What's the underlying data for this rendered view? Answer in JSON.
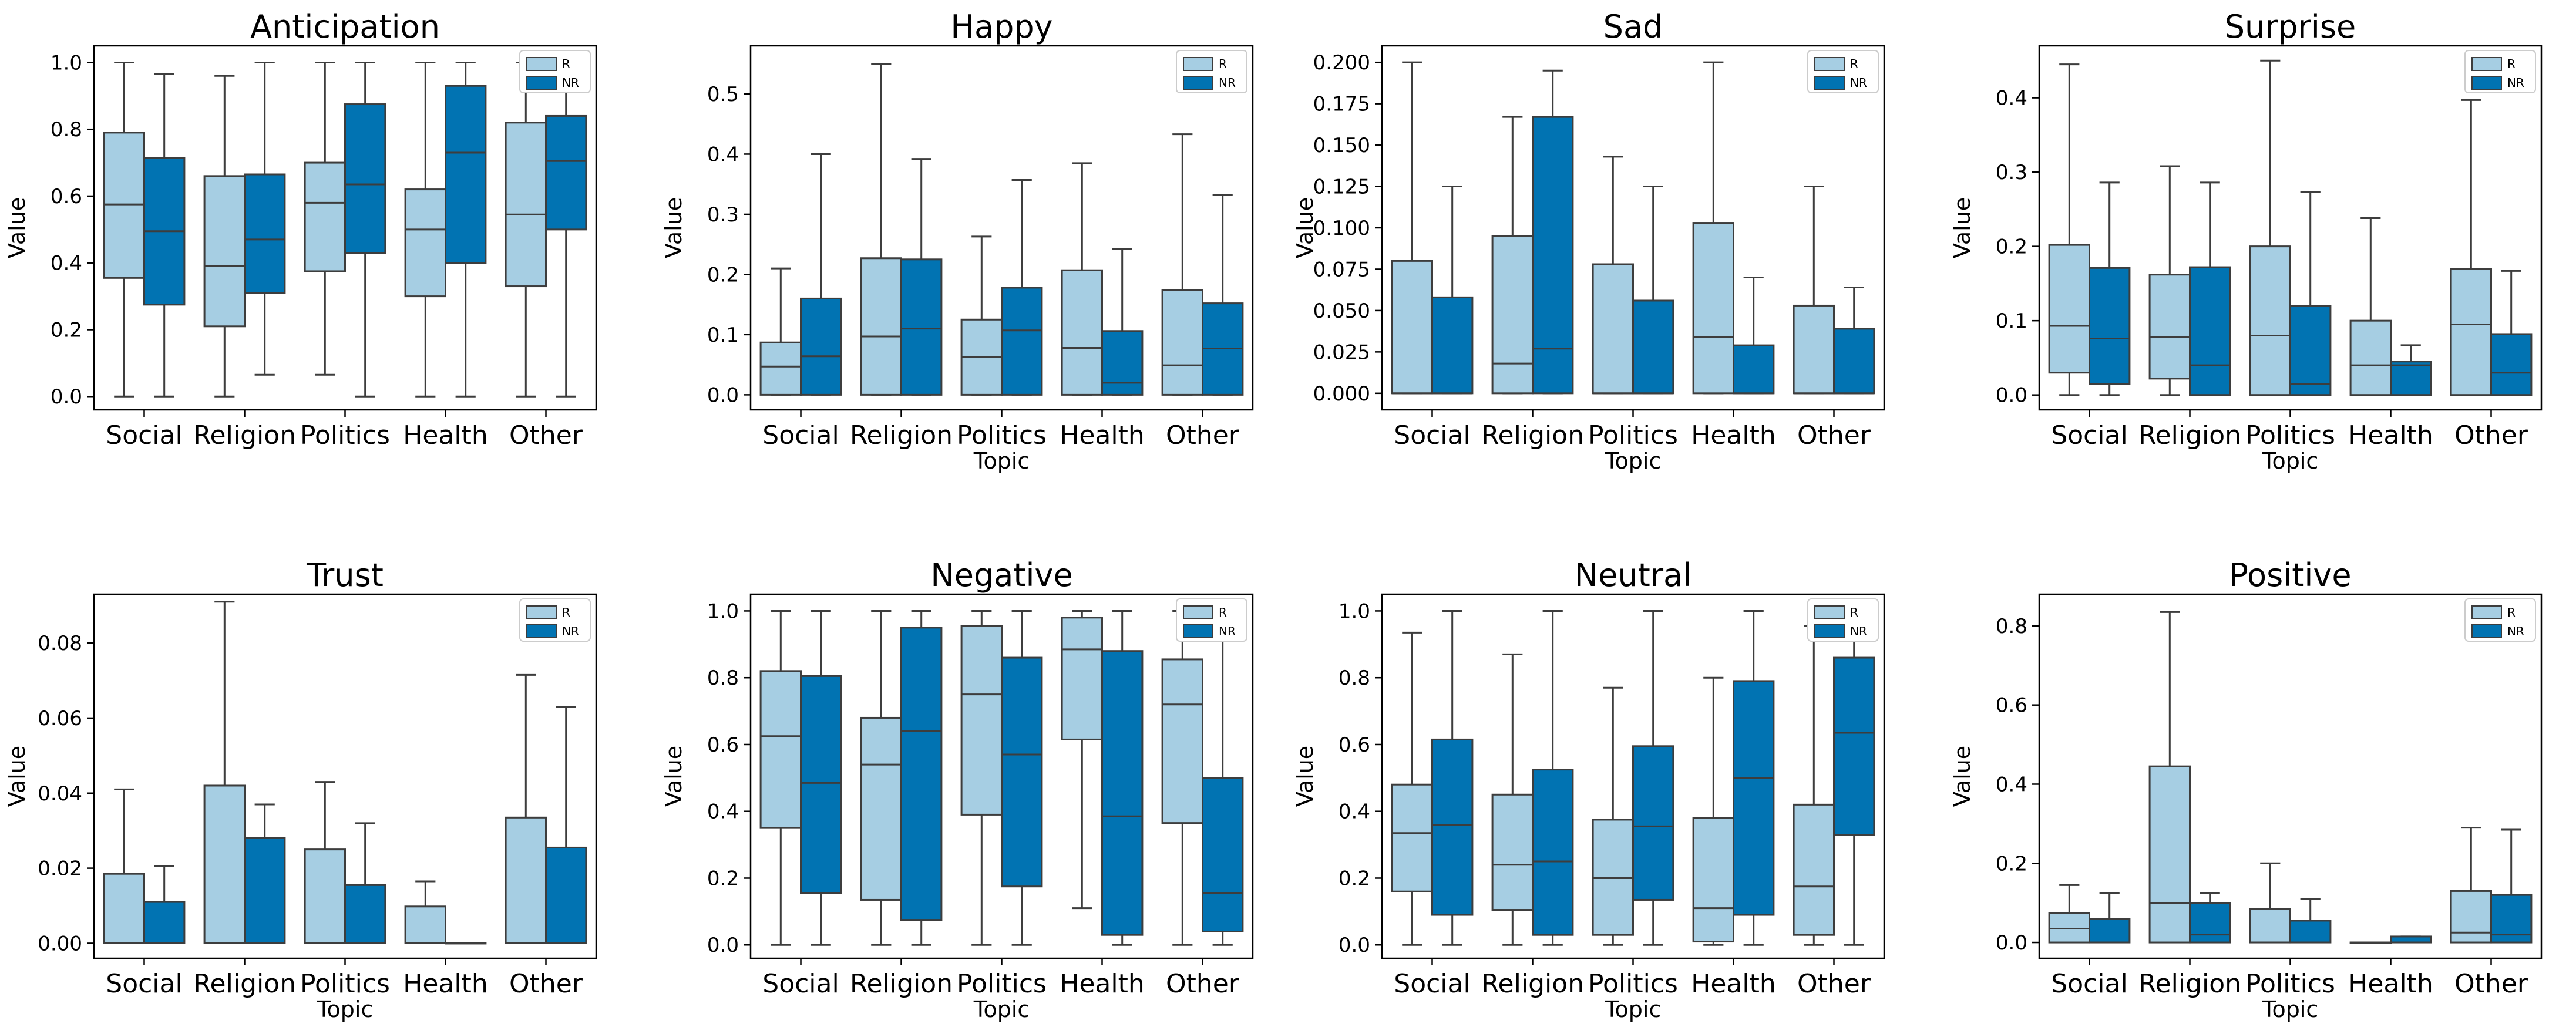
{
  "chart_data": [
    {
      "type": "box",
      "title": "Anticipation",
      "xlabel": "",
      "ylabel": "Value",
      "ylim": [
        -0.04,
        1.05
      ],
      "yticks": [
        0.0,
        0.2,
        0.4,
        0.6,
        0.8,
        1.0
      ],
      "ytick_labels": [
        "0.0",
        "0.2",
        "0.4",
        "0.6",
        "0.8",
        "1.0"
      ],
      "categories": [
        "Social",
        "Religion",
        "Politics",
        "Health",
        "Other"
      ],
      "legend": [
        "R",
        "NR"
      ],
      "series": [
        {
          "name": "R",
          "color": "#a6cee3",
          "boxes": [
            [
              0,
              0.355,
              0.575,
              0.79,
              1.0
            ],
            [
              0,
              0.21,
              0.39,
              0.66,
              0.96
            ],
            [
              0.065,
              0.375,
              0.58,
              0.7,
              1.0
            ],
            [
              0,
              0.3,
              0.5,
              0.62,
              1.0
            ],
            [
              0,
              0.33,
              0.545,
              0.82,
              1.0
            ]
          ]
        },
        {
          "name": "NR",
          "color": "#0173b2",
          "boxes": [
            [
              0,
              0.275,
              0.495,
              0.715,
              0.965
            ],
            [
              0.065,
              0.31,
              0.47,
              0.665,
              1.0
            ],
            [
              0,
              0.43,
              0.635,
              0.875,
              1.0
            ],
            [
              0,
              0.4,
              0.73,
              0.93,
              1.0
            ],
            [
              0,
              0.5,
              0.705,
              0.84,
              1.0
            ]
          ]
        }
      ]
    },
    {
      "type": "box",
      "title": "Happy",
      "xlabel": "Topic",
      "ylabel": "Value",
      "ylim": [
        -0.025,
        0.58
      ],
      "yticks": [
        0.0,
        0.1,
        0.2,
        0.3,
        0.4,
        0.5
      ],
      "ytick_labels": [
        "0.0",
        "0.1",
        "0.2",
        "0.3",
        "0.4",
        "0.5"
      ],
      "categories": [
        "Social",
        "Religion",
        "Politics",
        "Health",
        "Other"
      ],
      "legend": [
        "R",
        "NR"
      ],
      "series": [
        {
          "name": "R",
          "color": "#a6cee3",
          "boxes": [
            [
              0,
              0,
              0.047,
              0.087,
              0.21
            ],
            [
              0,
              0,
              0.097,
              0.227,
              0.55
            ],
            [
              0,
              0,
              0.063,
              0.125,
              0.263
            ],
            [
              0,
              0,
              0.078,
              0.207,
              0.385
            ],
            [
              0,
              0,
              0.049,
              0.174,
              0.433
            ]
          ]
        },
        {
          "name": "NR",
          "color": "#0173b2",
          "boxes": [
            [
              0,
              0,
              0.064,
              0.16,
              0.4
            ],
            [
              0,
              0,
              0.11,
              0.225,
              0.392
            ],
            [
              0,
              0,
              0.107,
              0.178,
              0.357
            ],
            [
              0,
              0,
              0.02,
              0.106,
              0.242
            ],
            [
              0,
              0,
              0.077,
              0.152,
              0.332
            ]
          ]
        }
      ]
    },
    {
      "type": "box",
      "title": "Sad",
      "xlabel": "Topic",
      "ylabel": "Value",
      "ylim": [
        -0.01,
        0.21
      ],
      "yticks": [
        0.0,
        0.025,
        0.05,
        0.075,
        0.1,
        0.125,
        0.15,
        0.175,
        0.2
      ],
      "ytick_labels": [
        "0.000",
        "0.025",
        "0.050",
        "0.075",
        "0.100",
        "0.125",
        "0.150",
        "0.175",
        "0.200"
      ],
      "categories": [
        "Social",
        "Religion",
        "Politics",
        "Health",
        "Other"
      ],
      "legend": [
        "R",
        "NR"
      ],
      "series": [
        {
          "name": "R",
          "color": "#a6cee3",
          "boxes": [
            [
              0,
              0,
              0,
              0.08,
              0.2
            ],
            [
              0,
              0,
              0.018,
              0.095,
              0.167
            ],
            [
              0,
              0,
              0,
              0.078,
              0.143
            ],
            [
              0,
              0,
              0.034,
              0.103,
              0.2
            ],
            [
              0,
              0,
              0,
              0.053,
              0.125
            ]
          ]
        },
        {
          "name": "NR",
          "color": "#0173b2",
          "boxes": [
            [
              0,
              0,
              0,
              0.058,
              0.125
            ],
            [
              0,
              0,
              0.027,
              0.167,
              0.195
            ],
            [
              0,
              0,
              0,
              0.056,
              0.125
            ],
            [
              0,
              0,
              0,
              0.029,
              0.07
            ],
            [
              0,
              0,
              0,
              0.039,
              0.064
            ]
          ]
        }
      ]
    },
    {
      "type": "box",
      "title": "Surprise",
      "xlabel": "Topic",
      "ylabel": "Value",
      "ylim": [
        -0.02,
        0.47
      ],
      "yticks": [
        0.0,
        0.1,
        0.2,
        0.3,
        0.4
      ],
      "ytick_labels": [
        "0.0",
        "0.1",
        "0.2",
        "0.3",
        "0.4"
      ],
      "categories": [
        "Social",
        "Religion",
        "Politics",
        "Health",
        "Other"
      ],
      "legend": [
        "R",
        "NR"
      ],
      "series": [
        {
          "name": "R",
          "color": "#a6cee3",
          "boxes": [
            [
              0,
              0.03,
              0.093,
              0.202,
              0.445
            ],
            [
              0,
              0.022,
              0.078,
              0.162,
              0.308
            ],
            [
              0,
              0,
              0.08,
              0.2,
              0.45
            ],
            [
              0,
              0,
              0.04,
              0.1,
              0.238
            ],
            [
              0,
              0,
              0.095,
              0.17,
              0.397
            ]
          ]
        },
        {
          "name": "NR",
          "color": "#0173b2",
          "boxes": [
            [
              0,
              0.015,
              0.076,
              0.171,
              0.286
            ],
            [
              0,
              0,
              0.04,
              0.172,
              0.286
            ],
            [
              0,
              0,
              0.015,
              0.12,
              0.273
            ],
            [
              0,
              0,
              0.04,
              0.045,
              0.067
            ],
            [
              0,
              0,
              0.03,
              0.082,
              0.167
            ]
          ]
        }
      ]
    },
    {
      "type": "box",
      "title": "Trust",
      "xlabel": "Topic",
      "ylabel": "Value",
      "ylim": [
        -0.004,
        0.093
      ],
      "yticks": [
        0.0,
        0.02,
        0.04,
        0.06,
        0.08
      ],
      "ytick_labels": [
        "0.00",
        "0.02",
        "0.04",
        "0.06",
        "0.08"
      ],
      "categories": [
        "Social",
        "Religion",
        "Politics",
        "Health",
        "Other"
      ],
      "legend": [
        "R",
        "NR"
      ],
      "series": [
        {
          "name": "R",
          "color": "#a6cee3",
          "boxes": [
            [
              0,
              0,
              0,
              0.0185,
              0.041
            ],
            [
              0,
              0,
              0,
              0.042,
              0.091
            ],
            [
              0,
              0,
              0,
              0.025,
              0.043
            ],
            [
              0,
              0,
              0,
              0.0098,
              0.0165
            ],
            [
              0,
              0,
              0,
              0.0335,
              0.0715
            ]
          ]
        },
        {
          "name": "NR",
          "color": "#0173b2",
          "boxes": [
            [
              0,
              0,
              0,
              0.011,
              0.0205
            ],
            [
              0,
              0,
              0,
              0.028,
              0.037
            ],
            [
              0,
              0,
              0,
              0.0155,
              0.032
            ],
            [
              0,
              0,
              0,
              0,
              0
            ],
            [
              0,
              0,
              0,
              0.0255,
              0.063
            ]
          ]
        }
      ]
    },
    {
      "type": "box",
      "title": "Negative",
      "xlabel": "Topic",
      "ylabel": "Value",
      "ylim": [
        -0.04,
        1.05
      ],
      "yticks": [
        0.0,
        0.2,
        0.4,
        0.6,
        0.8,
        1.0
      ],
      "ytick_labels": [
        "0.0",
        "0.2",
        "0.4",
        "0.6",
        "0.8",
        "1.0"
      ],
      "categories": [
        "Social",
        "Religion",
        "Politics",
        "Health",
        "Other"
      ],
      "legend": [
        "R",
        "NR"
      ],
      "series": [
        {
          "name": "R",
          "color": "#a6cee3",
          "boxes": [
            [
              0,
              0.35,
              0.625,
              0.82,
              1.0
            ],
            [
              0,
              0.135,
              0.54,
              0.68,
              1.0
            ],
            [
              0,
              0.39,
              0.75,
              0.955,
              1.0
            ],
            [
              0.11,
              0.615,
              0.885,
              0.98,
              1.0
            ],
            [
              0,
              0.365,
              0.72,
              0.855,
              1.0
            ]
          ]
        },
        {
          "name": "NR",
          "color": "#0173b2",
          "boxes": [
            [
              0,
              0.155,
              0.485,
              0.805,
              1.0
            ],
            [
              0,
              0.075,
              0.64,
              0.95,
              1.0
            ],
            [
              0,
              0.175,
              0.57,
              0.86,
              1.0
            ],
            [
              0,
              0.03,
              0.385,
              0.88,
              1.0
            ],
            [
              0,
              0.04,
              0.155,
              0.5,
              1.0
            ]
          ]
        }
      ]
    },
    {
      "type": "box",
      "title": "Neutral",
      "xlabel": "Topic",
      "ylabel": "Value",
      "ylim": [
        -0.04,
        1.05
      ],
      "yticks": [
        0.0,
        0.2,
        0.4,
        0.6,
        0.8,
        1.0
      ],
      "ytick_labels": [
        "0.0",
        "0.2",
        "0.4",
        "0.6",
        "0.8",
        "1.0"
      ],
      "categories": [
        "Social",
        "Religion",
        "Politics",
        "Health",
        "Other"
      ],
      "legend": [
        "R",
        "NR"
      ],
      "series": [
        {
          "name": "R",
          "color": "#a6cee3",
          "boxes": [
            [
              0,
              0.16,
              0.335,
              0.48,
              0.935
            ],
            [
              0,
              0.105,
              0.24,
              0.45,
              0.87
            ],
            [
              0,
              0.03,
              0.2,
              0.375,
              0.77
            ],
            [
              0,
              0.01,
              0.11,
              0.38,
              0.8
            ],
            [
              0,
              0.03,
              0.175,
              0.42,
              0.955
            ]
          ]
        },
        {
          "name": "NR",
          "color": "#0173b2",
          "boxes": [
            [
              0,
              0.09,
              0.36,
              0.615,
              1.0
            ],
            [
              0,
              0.03,
              0.25,
              0.525,
              1.0
            ],
            [
              0,
              0.135,
              0.355,
              0.595,
              1.0
            ],
            [
              0,
              0.09,
              0.5,
              0.79,
              1.0
            ],
            [
              0,
              0.33,
              0.635,
              0.86,
              1.0
            ]
          ]
        }
      ]
    },
    {
      "type": "box",
      "title": "Positive",
      "xlabel": "Topic",
      "ylabel": "Value",
      "ylim": [
        -0.04,
        0.88
      ],
      "yticks": [
        0.0,
        0.2,
        0.4,
        0.6,
        0.8
      ],
      "ytick_labels": [
        "0.0",
        "0.2",
        "0.4",
        "0.6",
        "0.8"
      ],
      "categories": [
        "Social",
        "Religion",
        "Politics",
        "Health",
        "Other"
      ],
      "legend": [
        "R",
        "NR"
      ],
      "series": [
        {
          "name": "R",
          "color": "#a6cee3",
          "boxes": [
            [
              0,
              0,
              0.035,
              0.075,
              0.145
            ],
            [
              0,
              0,
              0.1,
              0.445,
              0.835
            ],
            [
              0,
              0,
              0,
              0.085,
              0.2
            ],
            [
              0,
              0,
              0,
              0,
              0
            ],
            [
              0,
              0,
              0.025,
              0.13,
              0.29
            ]
          ]
        },
        {
          "name": "NR",
          "color": "#0173b2",
          "boxes": [
            [
              0,
              0,
              0,
              0.06,
              0.125
            ],
            [
              0,
              0,
              0.02,
              0.1,
              0.125
            ],
            [
              0,
              0,
              0,
              0.055,
              0.11
            ],
            [
              0,
              0,
              0,
              0.015,
              0.015
            ],
            [
              0,
              0,
              0.02,
              0.12,
              0.285
            ]
          ]
        }
      ]
    }
  ]
}
